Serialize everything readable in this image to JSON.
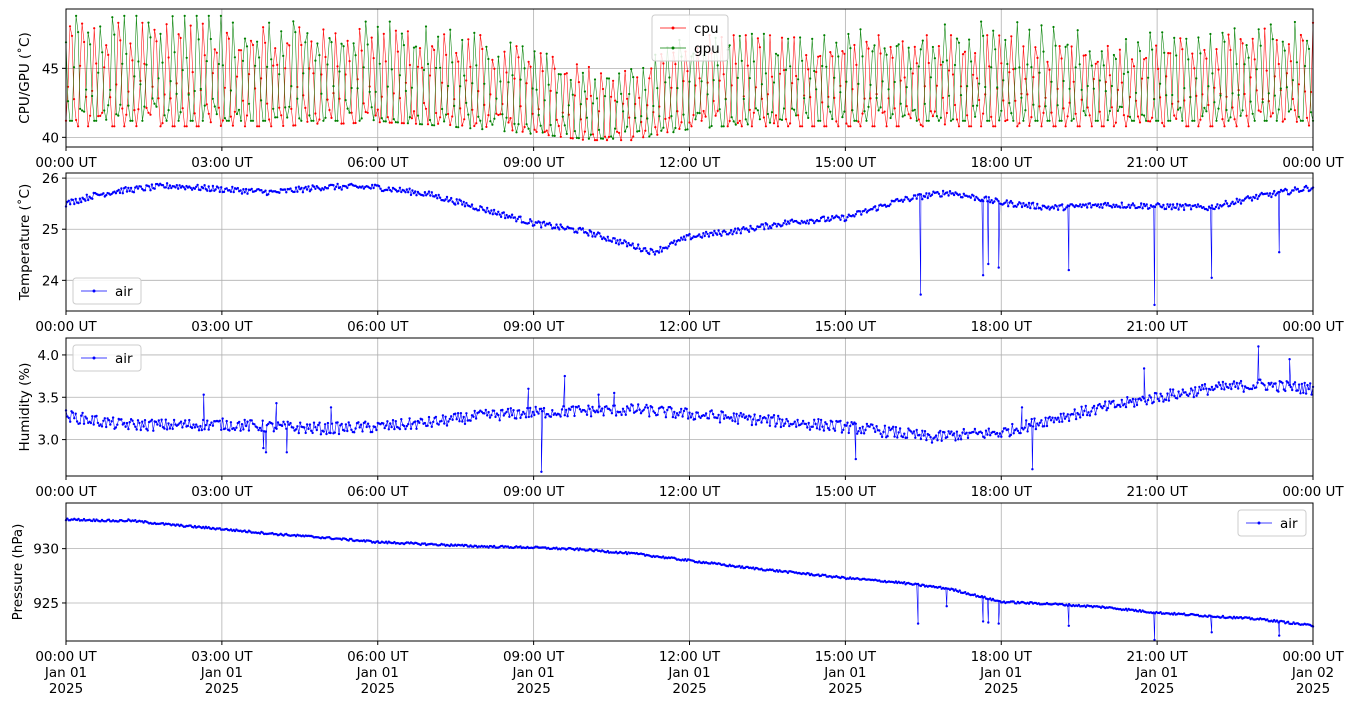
{
  "chart_data": [
    {
      "type": "line",
      "ylabel": "CPU/GPU (˚C)",
      "xlim": [
        "2025-01-01T00:00Z",
        "2025-01-02T00:00Z"
      ],
      "ylim": [
        39.3,
        49.3
      ],
      "yticks": [
        40,
        45
      ],
      "x_ticks": [
        "00:00 UT",
        "03:00 UT",
        "06:00 UT",
        "09:00 UT",
        "12:00 UT",
        "15:00 UT",
        "18:00 UT",
        "21:00 UT",
        "00:00 UT"
      ],
      "grid": true,
      "legend_position": "upper-center",
      "series": [
        {
          "name": "cpu",
          "color": "#ff0000",
          "marker": "dot",
          "x_hours": [
            0,
            2,
            4,
            6,
            8,
            10,
            11,
            12,
            14,
            16,
            18,
            20,
            22,
            24
          ],
          "band_low": [
            40.8,
            40.8,
            40.8,
            41.1,
            40.8,
            39.8,
            39.8,
            40.8,
            40.8,
            40.8,
            40.8,
            40.8,
            40.8,
            40.8
          ],
          "band_high": [
            48.3,
            48.3,
            48.1,
            47.8,
            47.4,
            45.1,
            45.1,
            47.4,
            47.4,
            47.4,
            47.4,
            46.6,
            47.4,
            48.3
          ]
        },
        {
          "name": "gpu",
          "color": "#008000",
          "marker": "dot",
          "x_hours": [
            0,
            2,
            4,
            6,
            8,
            10,
            11,
            12,
            14,
            16,
            18,
            20,
            22,
            24
          ],
          "band_low": [
            41.2,
            41.2,
            41.2,
            41.2,
            40.6,
            39.9,
            39.9,
            40.6,
            41.2,
            41.2,
            41.2,
            41.2,
            41.2,
            41.2
          ],
          "band_high": [
            48.8,
            48.8,
            48.8,
            48.5,
            47.5,
            45.2,
            45.2,
            47.5,
            47.7,
            47.9,
            48.5,
            47.5,
            47.7,
            48.5
          ]
        }
      ]
    },
    {
      "type": "line",
      "ylabel": "Temperature (˚C)",
      "xlim": [
        "2025-01-01T00:00Z",
        "2025-01-02T00:00Z"
      ],
      "ylim": [
        23.4,
        26.1
      ],
      "yticks": [
        24,
        25,
        26
      ],
      "x_ticks": [
        "00:00 UT",
        "03:00 UT",
        "06:00 UT",
        "09:00 UT",
        "12:00 UT",
        "15:00 UT",
        "18:00 UT",
        "21:00 UT",
        "00:00 UT"
      ],
      "grid": true,
      "legend_position": "lower-left",
      "series": [
        {
          "name": "air",
          "color": "#0000ff",
          "marker": "dot",
          "x_hours": [
            0,
            0.5,
            1,
            2,
            3,
            4,
            5,
            6,
            7,
            8,
            9,
            10,
            11,
            11.3,
            12,
            13,
            14,
            15,
            16,
            16.5,
            17,
            18,
            19,
            20,
            21,
            22,
            23,
            24
          ],
          "y": [
            25.5,
            25.65,
            25.75,
            25.85,
            25.78,
            25.72,
            25.83,
            25.82,
            25.68,
            25.4,
            25.12,
            24.95,
            24.65,
            24.55,
            24.85,
            24.98,
            25.15,
            25.22,
            25.55,
            25.65,
            25.72,
            25.52,
            25.42,
            25.48,
            25.45,
            25.42,
            25.65,
            25.82
          ],
          "dips": [
            [
              16.45,
              23.72
            ],
            [
              17.65,
              24.1
            ],
            [
              17.75,
              24.32
            ],
            [
              17.95,
              24.25
            ],
            [
              19.3,
              24.2
            ],
            [
              20.95,
              23.52
            ],
            [
              22.05,
              24.05
            ],
            [
              23.35,
              24.55
            ]
          ]
        }
      ]
    },
    {
      "type": "line",
      "ylabel": "Humidity (%)",
      "xlim": [
        "2025-01-01T00:00Z",
        "2025-01-02T00:00Z"
      ],
      "ylim": [
        2.57,
        4.2
      ],
      "yticks": [
        3.0,
        3.5,
        4.0
      ],
      "x_ticks": [
        "00:00 UT",
        "03:00 UT",
        "06:00 UT",
        "09:00 UT",
        "12:00 UT",
        "15:00 UT",
        "18:00 UT",
        "21:00 UT",
        "00:00 UT"
      ],
      "grid": true,
      "legend_position": "upper-left",
      "series": [
        {
          "name": "air",
          "color": "#0000ff",
          "marker": "dot",
          "x_hours": [
            0,
            1,
            2,
            3,
            4,
            5,
            6,
            7,
            8,
            9,
            10,
            11,
            12,
            13,
            14,
            15,
            16,
            16.7,
            17,
            18,
            19,
            20,
            21,
            22,
            23,
            24
          ],
          "y": [
            3.28,
            3.18,
            3.17,
            3.18,
            3.15,
            3.13,
            3.15,
            3.2,
            3.28,
            3.32,
            3.34,
            3.35,
            3.3,
            3.25,
            3.2,
            3.15,
            3.08,
            3.02,
            3.05,
            3.08,
            3.25,
            3.38,
            3.5,
            3.6,
            3.65,
            3.6
          ],
          "spikes": [
            [
              2.65,
              3.53
            ],
            [
              4.05,
              3.43
            ],
            [
              3.8,
              2.9
            ],
            [
              3.85,
              2.85
            ],
            [
              4.25,
              2.85
            ],
            [
              5.1,
              3.38
            ],
            [
              9.15,
              2.62
            ],
            [
              8.9,
              3.6
            ],
            [
              9.6,
              3.75
            ],
            [
              10.25,
              3.53
            ],
            [
              10.55,
              3.55
            ],
            [
              15.2,
              2.77
            ],
            [
              18.4,
              3.38
            ],
            [
              18.6,
              2.65
            ],
            [
              20.75,
              3.84
            ],
            [
              22.95,
              4.1
            ],
            [
              23.55,
              3.95
            ]
          ]
        }
      ]
    },
    {
      "type": "line",
      "ylabel": "Pressure (hPa)",
      "xlim": [
        "2025-01-01T00:00Z",
        "2025-01-02T00:00Z"
      ],
      "ylim": [
        921.5,
        934.2
      ],
      "yticks": [
        925,
        930
      ],
      "x_ticks": [
        "00:00 UT\nJan 01\n2025",
        "03:00 UT\nJan 01\n2025",
        "06:00 UT\nJan 01\n2025",
        "09:00 UT\nJan 01\n2025",
        "12:00 UT\nJan 01\n2025",
        "15:00 UT\nJan 01\n2025",
        "18:00 UT\nJan 01\n2025",
        "21:00 UT\nJan 01\n2025",
        "00:00 UT\nJan 02\n2025"
      ],
      "grid": true,
      "legend_position": "upper-right",
      "series": [
        {
          "name": "air",
          "color": "#0000ff",
          "marker": "dot",
          "x_hours": [
            0,
            1,
            1.2,
            2,
            3,
            4,
            5,
            6,
            7,
            8,
            9,
            10,
            11,
            12,
            13,
            14,
            15,
            16,
            17,
            18,
            19,
            20,
            21,
            22,
            23,
            24
          ],
          "y": [
            932.7,
            932.55,
            932.6,
            932.2,
            931.8,
            931.35,
            931.0,
            930.6,
            930.4,
            930.2,
            930.1,
            929.9,
            929.5,
            928.9,
            928.3,
            927.8,
            927.3,
            926.9,
            926.3,
            925.1,
            924.9,
            924.6,
            924.1,
            923.8,
            923.5,
            922.9
          ],
          "dips": [
            [
              16.4,
              923.1
            ],
            [
              16.95,
              924.7
            ],
            [
              17.65,
              923.3
            ],
            [
              17.75,
              923.2
            ],
            [
              17.95,
              923.1
            ],
            [
              19.3,
              922.9
            ],
            [
              20.95,
              921.6
            ],
            [
              22.05,
              922.3
            ],
            [
              23.35,
              922.0
            ]
          ]
        }
      ]
    }
  ]
}
